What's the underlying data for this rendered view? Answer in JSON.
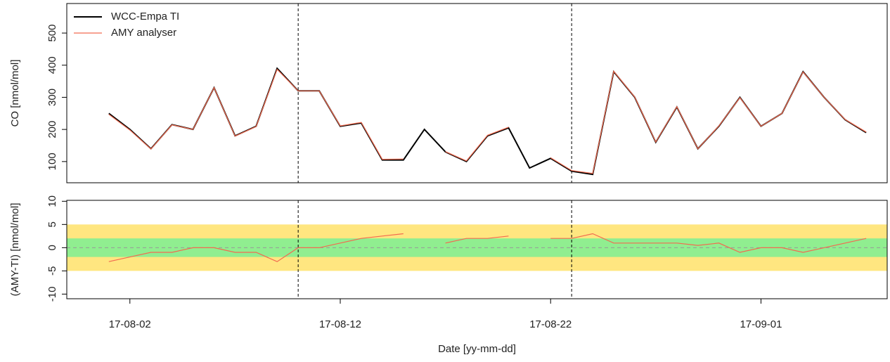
{
  "chart_data": [
    {
      "type": "line",
      "x": [
        "17-08-01",
        "17-08-02",
        "17-08-03",
        "17-08-04",
        "17-08-05",
        "17-08-06",
        "17-08-07",
        "17-08-08",
        "17-08-09",
        "17-08-10",
        "17-08-11",
        "17-08-12",
        "17-08-13",
        "17-08-14",
        "17-08-15",
        "17-08-16",
        "17-08-17",
        "17-08-18",
        "17-08-19",
        "17-08-20",
        "17-08-21",
        "17-08-22",
        "17-08-23",
        "17-08-24",
        "17-08-25",
        "17-08-26",
        "17-08-27",
        "17-08-28",
        "17-08-29",
        "17-08-30",
        "17-08-31",
        "17-09-01",
        "17-09-02",
        "17-09-03",
        "17-09-04",
        "17-09-05",
        "17-09-06"
      ],
      "series": [
        {
          "name": "WCC-Empa TI",
          "color": "#000000",
          "values": [
            250,
            200,
            140,
            215,
            200,
            330,
            180,
            210,
            390,
            320,
            320,
            210,
            220,
            105,
            105,
            200,
            130,
            100,
            180,
            205,
            80,
            110,
            70,
            60,
            380,
            300,
            160,
            270,
            140,
            210,
            300,
            210,
            250,
            380,
            300,
            230,
            190
          ]
        },
        {
          "name": "AMY analyser",
          "color": "#f26b50",
          "values": [
            247,
            198,
            139,
            214,
            200,
            330,
            179,
            209,
            387,
            320,
            320,
            211,
            222,
            107,
            108,
            null,
            131,
            102,
            182,
            207,
            null,
            112,
            72,
            63,
            381,
            301,
            161,
            271,
            140,
            211,
            299,
            210,
            250,
            379,
            300,
            231,
            192
          ]
        }
      ],
      "ylabel": "CO [nmol/mol]",
      "ylim": [
        34,
        592
      ],
      "yticks": [
        100,
        200,
        300,
        400,
        500
      ],
      "xlim": [
        "17-07-30",
        "17-09-07"
      ],
      "vlines": [
        "17-08-10",
        "17-08-23"
      ],
      "legend": "top-left"
    },
    {
      "type": "line",
      "x": [
        "17-08-01",
        "17-08-02",
        "17-08-03",
        "17-08-04",
        "17-08-05",
        "17-08-06",
        "17-08-07",
        "17-08-08",
        "17-08-09",
        "17-08-10",
        "17-08-11",
        "17-08-12",
        "17-08-13",
        "17-08-14",
        "17-08-15",
        "17-08-16",
        "17-08-17",
        "17-08-18",
        "17-08-19",
        "17-08-20",
        "17-08-21",
        "17-08-22",
        "17-08-23",
        "17-08-24",
        "17-08-25",
        "17-08-26",
        "17-08-27",
        "17-08-28",
        "17-08-29",
        "17-08-30",
        "17-08-31",
        "17-09-01",
        "17-09-02",
        "17-09-03",
        "17-09-04",
        "17-09-05",
        "17-09-06"
      ],
      "series": [
        {
          "color": "#f26b50",
          "values": [
            -3,
            -2,
            -1,
            -1,
            0,
            0,
            -1,
            -1,
            -3,
            0,
            0,
            1,
            2,
            2.5,
            3,
            null,
            1,
            2,
            2,
            2.5,
            null,
            2,
            2,
            3,
            1,
            1,
            1,
            1,
            0.5,
            1,
            -1,
            0,
            0,
            -1,
            0,
            1,
            2
          ]
        }
      ],
      "ylabel": "(AMY-TI) [nmol/mol]",
      "ylim": [
        -11,
        10.2
      ],
      "yticks": [
        -10,
        -5,
        0,
        5,
        10
      ],
      "xlim": [
        "17-07-30",
        "17-09-07"
      ],
      "xticks": [
        "17-08-02",
        "17-08-12",
        "17-08-22",
        "17-09-01"
      ],
      "xlabel": "Date [yy-mm-dd]",
      "vlines": [
        "17-08-10",
        "17-08-23"
      ],
      "bands": [
        {
          "range": [
            -5,
            5
          ],
          "color": "#ffe680"
        },
        {
          "range": [
            -2,
            2
          ],
          "color": "#90ee90"
        }
      ],
      "hline": 0
    }
  ]
}
